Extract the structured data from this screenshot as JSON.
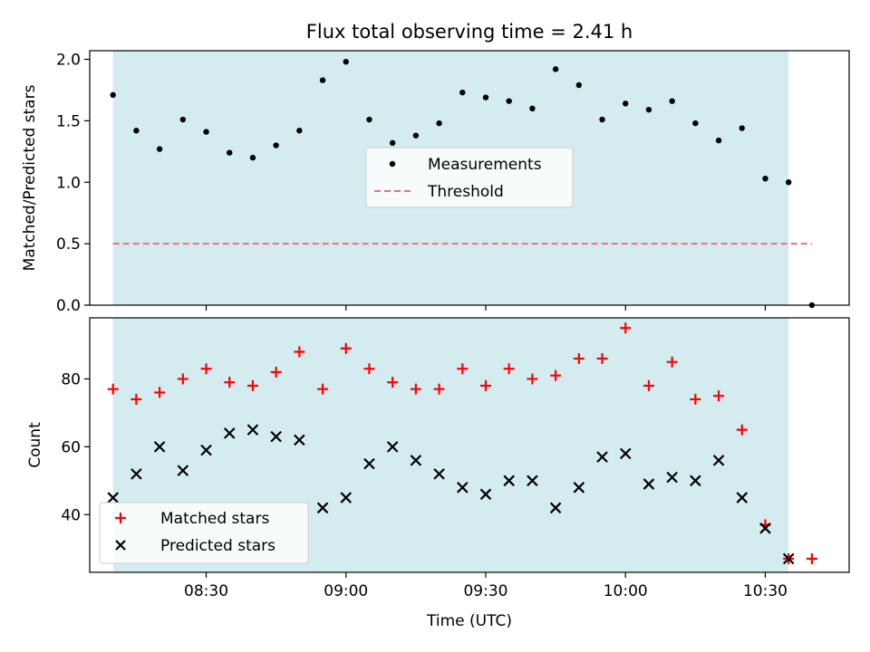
{
  "chart_data": {
    "title": "Flux total observing time = 2.41 h",
    "xlabel": "Time (UTC)",
    "x_range": [
      "08:05",
      "10:48"
    ],
    "x_ticks": [
      "08:30",
      "09:00",
      "09:30",
      "10:00",
      "10:30"
    ],
    "shaded_interval": {
      "start": "08:10",
      "end": "10:35",
      "color": "#d4ebf0"
    },
    "panels": [
      {
        "type": "scatter",
        "ylabel": "Matched/Predicted stars",
        "ylim": [
          0,
          2.07
        ],
        "yticks": [
          "0.0",
          "0.5",
          "1.0",
          "1.5",
          "2.0"
        ],
        "legend_position": "center",
        "series": [
          {
            "name": "Measurements",
            "marker": "dot",
            "color": "#000000",
            "x": [
              "08:10",
              "08:15",
              "08:20",
              "08:25",
              "08:30",
              "08:35",
              "08:40",
              "08:45",
              "08:50",
              "08:55",
              "09:00",
              "09:05",
              "09:10",
              "09:15",
              "09:20",
              "09:25",
              "09:30",
              "09:35",
              "09:40",
              "09:45",
              "09:50",
              "09:55",
              "10:00",
              "10:05",
              "10:10",
              "10:15",
              "10:20",
              "10:25",
              "10:30",
              "10:35",
              "10:40"
            ],
            "values": [
              1.71,
              1.42,
              1.27,
              1.51,
              1.41,
              1.24,
              1.2,
              1.3,
              1.42,
              1.83,
              1.98,
              1.51,
              1.32,
              1.38,
              1.48,
              1.73,
              1.69,
              1.66,
              1.6,
              1.92,
              1.79,
              1.51,
              1.64,
              1.59,
              1.66,
              1.48,
              1.34,
              1.44,
              1.03,
              1.0,
              0.0
            ]
          }
        ],
        "lines": [
          {
            "name": "Threshold",
            "value": 0.5,
            "style": "dashed",
            "color": "#f07070",
            "x_start": "08:10",
            "x_end": "10:40"
          }
        ]
      },
      {
        "type": "scatter",
        "ylabel": "Count",
        "ylim": [
          23,
          98
        ],
        "yticks": [
          "40",
          "60",
          "80"
        ],
        "legend_position": "lower-left",
        "series": [
          {
            "name": "Matched stars",
            "marker": "plus",
            "color": "#ff0000",
            "x": [
              "08:10",
              "08:15",
              "08:20",
              "08:25",
              "08:30",
              "08:35",
              "08:40",
              "08:45",
              "08:50",
              "08:55",
              "09:00",
              "09:05",
              "09:10",
              "09:15",
              "09:20",
              "09:25",
              "09:30",
              "09:35",
              "09:40",
              "09:45",
              "09:50",
              "09:55",
              "10:00",
              "10:05",
              "10:10",
              "10:15",
              "10:20",
              "10:25",
              "10:30",
              "10:35",
              "10:40"
            ],
            "values": [
              77,
              74,
              76,
              80,
              83,
              79,
              78,
              82,
              88,
              77,
              89,
              83,
              79,
              77,
              77,
              83,
              78,
              83,
              80,
              81,
              86,
              86,
              95,
              78,
              85,
              74,
              75,
              65,
              37,
              27,
              27
            ]
          },
          {
            "name": "Predicted stars",
            "marker": "x",
            "color": "#000000",
            "x": [
              "08:10",
              "08:15",
              "08:20",
              "08:25",
              "08:30",
              "08:35",
              "08:40",
              "08:45",
              "08:50",
              "08:55",
              "09:00",
              "09:05",
              "09:10",
              "09:15",
              "09:20",
              "09:25",
              "09:30",
              "09:35",
              "09:40",
              "09:45",
              "09:50",
              "09:55",
              "10:00",
              "10:05",
              "10:10",
              "10:15",
              "10:20",
              "10:25",
              "10:30",
              "10:35"
            ],
            "values": [
              45,
              52,
              60,
              53,
              59,
              64,
              65,
              63,
              62,
              42,
              45,
              55,
              60,
              56,
              52,
              48,
              46,
              50,
              50,
              42,
              48,
              57,
              58,
              49,
              51,
              50,
              56,
              45,
              36,
              27
            ]
          }
        ]
      }
    ]
  }
}
